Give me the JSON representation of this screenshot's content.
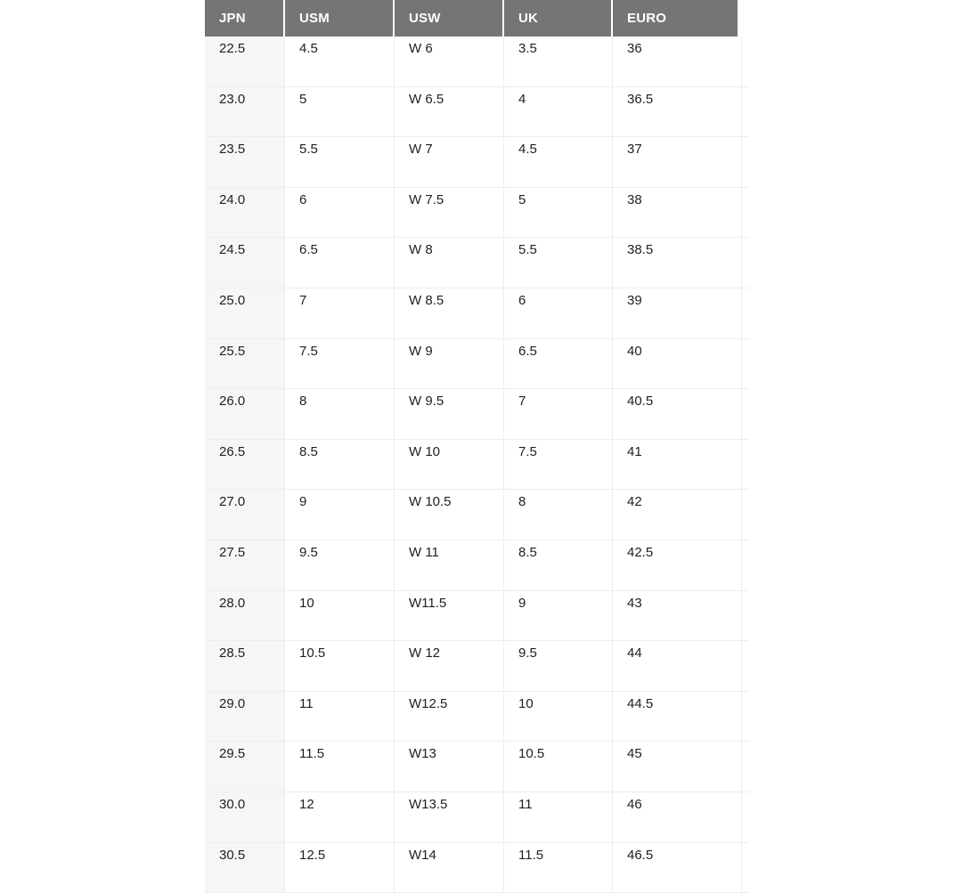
{
  "chart_data": {
    "type": "table",
    "title": "",
    "columns": [
      "JPN",
      "USM",
      "USW",
      "UK",
      "EURO"
    ],
    "rows": [
      [
        "22.5",
        "4.5",
        "W 6",
        "3.5",
        "36"
      ],
      [
        "23.0",
        "5",
        "W 6.5",
        "4",
        "36.5"
      ],
      [
        "23.5",
        "5.5",
        "W 7",
        "4.5",
        "37"
      ],
      [
        "24.0",
        "6",
        "W 7.5",
        "5",
        "38"
      ],
      [
        "24.5",
        "6.5",
        "W 8",
        "5.5",
        "38.5"
      ],
      [
        "25.0",
        "7",
        "W 8.5",
        "6",
        "39"
      ],
      [
        "25.5",
        "7.5",
        "W 9",
        "6.5",
        "40"
      ],
      [
        "26.0",
        "8",
        "W 9.5",
        "7",
        "40.5"
      ],
      [
        "26.5",
        "8.5",
        "W 10",
        "7.5",
        "41"
      ],
      [
        "27.0",
        "9",
        "W 10.5",
        "8",
        "42"
      ],
      [
        "27.5",
        "9.5",
        "W 11",
        "8.5",
        "42.5"
      ],
      [
        "28.0",
        "10",
        "W11.5",
        "9",
        "43"
      ],
      [
        "28.5",
        "10.5",
        "W 12",
        "9.5",
        "44"
      ],
      [
        "29.0",
        "11",
        "W12.5",
        "10",
        "44.5"
      ],
      [
        "29.5",
        "11.5",
        "W13",
        "10.5",
        "45"
      ],
      [
        "30.0",
        "12",
        "W13.5",
        "11",
        "46"
      ],
      [
        "30.5",
        "12.5",
        "W14",
        "11.5",
        "46.5"
      ]
    ]
  },
  "colors": {
    "header_bg": "#757575",
    "header_text": "#ffffff",
    "first_column_bg": "#f6f6f6",
    "row_border": "#ededed",
    "cell_text": "#212121",
    "page_bg": "#ffffff"
  }
}
